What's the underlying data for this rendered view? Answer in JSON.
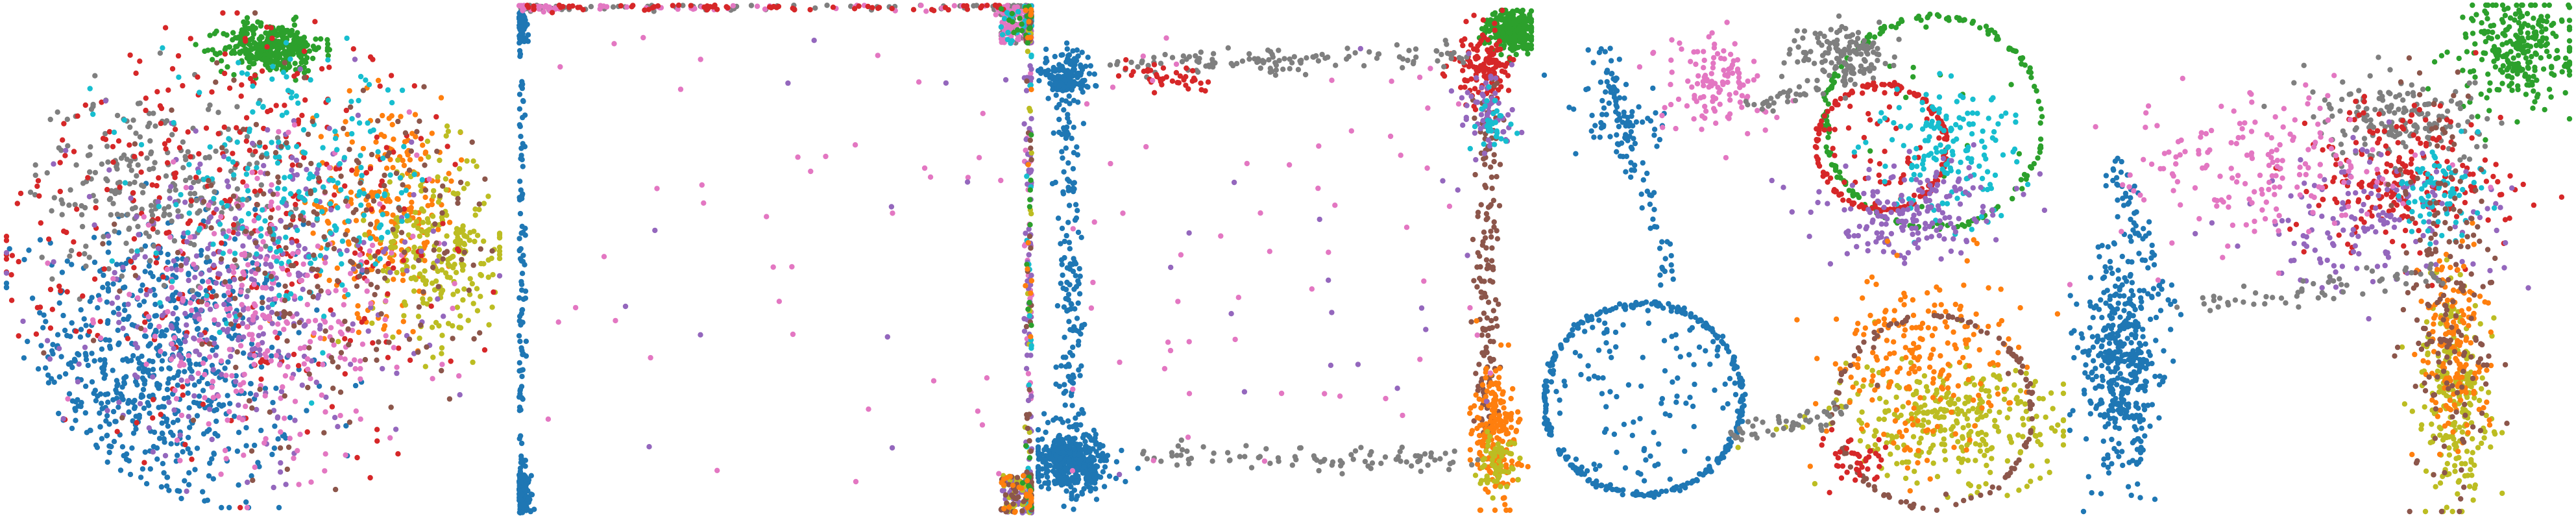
{
  "figure": {
    "palette": {
      "blue": "#1f77b4",
      "orange": "#ff7f0e",
      "green": "#2ca02c",
      "red": "#d62728",
      "purple": "#9467bd",
      "brown": "#8c564b",
      "pink": "#e377c2",
      "gray": "#7f7f7f",
      "olive": "#bcbd22",
      "cyan": "#17becf"
    }
  },
  "chart_data": [
    {
      "type": "scatter",
      "layout": "disk",
      "xlim": [
        -1,
        1
      ],
      "ylim": [
        -1,
        1
      ],
      "axes_visible": false,
      "grid": false,
      "legend": "none",
      "series": [
        {
          "color": "blue",
          "cluster": {
            "x": -0.4,
            "y": -0.45,
            "sx": 0.28,
            "sy": 0.3,
            "n": 750
          }
        },
        {
          "color": "green",
          "cluster": {
            "x": 0.08,
            "y": 0.86,
            "sx": 0.1,
            "sy": 0.05,
            "n": 340
          }
        },
        {
          "color": "orange",
          "cluster": {
            "x": 0.55,
            "y": 0.22,
            "sx": 0.15,
            "sy": 0.22,
            "n": 230
          }
        },
        {
          "color": "olive",
          "cluster": {
            "x": 0.76,
            "y": 0.04,
            "sx": 0.14,
            "sy": 0.2,
            "n": 260
          }
        },
        {
          "color": "gray",
          "cluster": {
            "x": -0.4,
            "y": 0.32,
            "sx": 0.26,
            "sy": 0.18,
            "n": 270
          }
        },
        {
          "color": "red",
          "cluster": {
            "x": -0.1,
            "y": 0.2,
            "sx": 0.55,
            "sy": 0.5,
            "n": 420
          }
        },
        {
          "color": "purple",
          "cluster": {
            "x": -0.05,
            "y": -0.12,
            "sx": 0.35,
            "sy": 0.32,
            "n": 350
          }
        },
        {
          "color": "pink",
          "cluster": {
            "x": 0.05,
            "y": -0.25,
            "sx": 0.32,
            "sy": 0.3,
            "n": 300
          }
        },
        {
          "color": "cyan",
          "cluster": {
            "x": 0.18,
            "y": 0.28,
            "sx": 0.28,
            "sy": 0.25,
            "n": 230
          }
        },
        {
          "color": "brown",
          "cluster": {
            "x": 0.32,
            "y": 0.0,
            "sx": 0.35,
            "sy": 0.4,
            "n": 250
          }
        }
      ]
    },
    {
      "type": "scatter",
      "layout": "square-boundary",
      "xlim": [
        -1,
        1
      ],
      "ylim": [
        -1,
        1
      ],
      "axes_visible": false,
      "grid": false,
      "legend": "none",
      "series": [
        {
          "color": "blue",
          "boundary": {
            "edges": [
              "left"
            ],
            "cornerBias": "bottom-left",
            "n": 340
          }
        },
        {
          "color": "gray",
          "boundary": {
            "edges": [
              "top"
            ],
            "cornerBias": "top-right",
            "n": 160
          }
        },
        {
          "color": "pink",
          "boundary": {
            "edges": [
              "right",
              "top"
            ],
            "cornerBias": "top-right",
            "n": 220
          }
        },
        {
          "color": "red",
          "boundary": {
            "edges": [
              "top"
            ],
            "cornerBias": "none",
            "n": 70
          }
        },
        {
          "color": "purple",
          "boundary": {
            "edges": [
              "right"
            ],
            "cornerBias": "bottom-right",
            "n": 180
          }
        },
        {
          "color": "olive",
          "boundary": {
            "edges": [
              "right"
            ],
            "cornerBias": "bottom-right",
            "n": 60
          }
        },
        {
          "color": "cyan",
          "boundary": {
            "edges": [
              "right"
            ],
            "cornerBias": "top-right",
            "n": 60
          }
        },
        {
          "color": "brown",
          "boundary": {
            "edges": [
              "right"
            ],
            "cornerBias": "bottom-right",
            "n": 80
          }
        },
        {
          "color": "green",
          "boundary": {
            "edges": [
              "right"
            ],
            "cornerBias": "top-right",
            "n": 40
          }
        },
        {
          "color": "orange",
          "boundary": {
            "edges": [
              "right"
            ],
            "cornerBias": "bottom-right",
            "n": 40
          }
        },
        {
          "color": "pink",
          "interior": {
            "n": 40
          }
        },
        {
          "color": "purple",
          "interior": {
            "n": 12
          }
        }
      ]
    },
    {
      "type": "scatter",
      "layout": "corner-clusters",
      "xlim": [
        -1,
        1
      ],
      "ylim": [
        -1,
        1
      ],
      "axes_visible": false,
      "grid": false,
      "legend": "none",
      "series": [
        {
          "color": "blue",
          "cluster": {
            "x": -0.86,
            "y": -0.8,
            "sx": 0.07,
            "sy": 0.06,
            "n": 420
          }
        },
        {
          "color": "blue",
          "cluster": {
            "x": -0.88,
            "y": 0.74,
            "sx": 0.05,
            "sy": 0.05,
            "n": 160
          }
        },
        {
          "color": "blue",
          "line": {
            "x0": -0.88,
            "y0": 0.6,
            "x1": -0.86,
            "y1": -0.7,
            "n": 150
          }
        },
        {
          "color": "green",
          "cluster": {
            "x": 0.92,
            "y": 0.92,
            "sx": 0.05,
            "sy": 0.04,
            "n": 300
          }
        },
        {
          "color": "red",
          "cluster": {
            "x": 0.8,
            "y": 0.78,
            "sx": 0.06,
            "sy": 0.08,
            "n": 120
          }
        },
        {
          "color": "gray",
          "line": {
            "x0": -0.7,
            "y0": 0.78,
            "x1": 0.8,
            "y1": 0.82,
            "n": 120
          }
        },
        {
          "color": "red",
          "line": {
            "x0": -0.65,
            "y0": 0.76,
            "x1": -0.3,
            "y1": 0.7,
            "n": 40
          }
        },
        {
          "color": "brown",
          "line": {
            "x0": 0.82,
            "y0": 0.7,
            "x1": 0.82,
            "y1": -0.7,
            "n": 160
          }
        },
        {
          "color": "orange",
          "cluster": {
            "x": 0.86,
            "y": -0.7,
            "sx": 0.05,
            "sy": 0.14,
            "n": 200
          }
        },
        {
          "color": "olive",
          "cluster": {
            "x": 0.86,
            "y": -0.82,
            "sx": 0.04,
            "sy": 0.06,
            "n": 60
          }
        },
        {
          "color": "purple",
          "cluster": {
            "x": 0.82,
            "y": 0.6,
            "sx": 0.05,
            "sy": 0.08,
            "n": 60
          }
        },
        {
          "color": "gray",
          "line": {
            "x0": -0.6,
            "y0": -0.78,
            "x1": 0.78,
            "y1": -0.8,
            "n": 90
          }
        },
        {
          "color": "pink",
          "interior": {
            "n": 60
          }
        },
        {
          "color": "purple",
          "interior": {
            "n": 20
          }
        },
        {
          "color": "cyan",
          "cluster": {
            "x": 0.84,
            "y": 0.55,
            "sx": 0.04,
            "sy": 0.05,
            "n": 30
          }
        }
      ]
    },
    {
      "type": "scatter",
      "layout": "circles-bridge",
      "xlim": [
        -1,
        1
      ],
      "ylim": [
        -1,
        1
      ],
      "axes_visible": false,
      "grid": false,
      "legend": "none",
      "series": [
        {
          "color": "blue",
          "ring": {
            "cx": -0.62,
            "cy": -0.55,
            "r": 0.38,
            "n": 420,
            "fill": 0.25
          }
        },
        {
          "color": "blue",
          "cluster": {
            "x": -0.72,
            "y": 0.55,
            "sx": 0.12,
            "sy": 0.08,
            "n": 60
          }
        },
        {
          "color": "blue",
          "line": {
            "x0": -0.78,
            "y0": 0.85,
            "x1": -0.5,
            "y1": -0.1,
            "n": 80
          }
        },
        {
          "color": "pink",
          "cluster": {
            "x": -0.35,
            "y": 0.7,
            "sx": 0.1,
            "sy": 0.1,
            "n": 120
          }
        },
        {
          "color": "green",
          "ring": {
            "cx": 0.5,
            "cy": 0.55,
            "r": 0.42,
            "n": 200,
            "fill": 0.1
          }
        },
        {
          "color": "red",
          "ring": {
            "cx": 0.3,
            "cy": 0.45,
            "r": 0.25,
            "n": 220,
            "fill": 0.3
          }
        },
        {
          "color": "gray",
          "cluster": {
            "x": 0.15,
            "y": 0.82,
            "sx": 0.08,
            "sy": 0.06,
            "n": 140
          }
        },
        {
          "color": "cyan",
          "cluster": {
            "x": 0.55,
            "y": 0.42,
            "sx": 0.14,
            "sy": 0.14,
            "n": 160
          }
        },
        {
          "color": "purple",
          "cluster": {
            "x": 0.4,
            "y": 0.18,
            "sx": 0.18,
            "sy": 0.1,
            "n": 180
          }
        },
        {
          "color": "olive",
          "cluster": {
            "x": 0.55,
            "y": -0.65,
            "sx": 0.22,
            "sy": 0.12,
            "n": 320
          }
        },
        {
          "color": "orange",
          "cluster": {
            "x": 0.45,
            "y": -0.4,
            "sx": 0.18,
            "sy": 0.18,
            "n": 220
          }
        },
        {
          "color": "brown",
          "ring": {
            "cx": 0.5,
            "cy": -0.6,
            "r": 0.38,
            "n": 120,
            "fill": 0.05
          }
        },
        {
          "color": "red",
          "cluster": {
            "x": 0.2,
            "y": -0.8,
            "sx": 0.06,
            "sy": 0.06,
            "n": 40
          }
        },
        {
          "color": "gray",
          "line": {
            "x0": -0.3,
            "y0": -0.7,
            "x1": 0.15,
            "y1": -0.6,
            "n": 50
          }
        },
        {
          "color": "gray",
          "line": {
            "x0": -0.2,
            "y0": 0.6,
            "x1": 0.1,
            "y1": 0.7,
            "n": 30
          }
        }
      ]
    },
    {
      "type": "scatter",
      "layout": "wing",
      "xlim": [
        -1,
        1
      ],
      "ylim": [
        -1,
        1
      ],
      "axes_visible": false,
      "grid": false,
      "legend": "none",
      "series": [
        {
          "color": "green",
          "cluster": {
            "x": 0.78,
            "y": 0.82,
            "sx": 0.12,
            "sy": 0.12,
            "n": 260
          }
        },
        {
          "color": "gray",
          "cluster": {
            "x": 0.3,
            "y": 0.55,
            "sx": 0.18,
            "sy": 0.08,
            "n": 180
          }
        },
        {
          "color": "blue",
          "cluster": {
            "x": -0.8,
            "y": -0.42,
            "sx": 0.08,
            "sy": 0.22,
            "n": 420
          }
        },
        {
          "color": "blue",
          "line": {
            "x0": -0.85,
            "y0": 0.4,
            "x1": -0.6,
            "y1": -0.2,
            "n": 60
          }
        },
        {
          "color": "red",
          "cluster": {
            "x": 0.35,
            "y": 0.3,
            "sx": 0.2,
            "sy": 0.15,
            "n": 220
          }
        },
        {
          "color": "purple",
          "cluster": {
            "x": 0.2,
            "y": 0.15,
            "sx": 0.25,
            "sy": 0.15,
            "n": 160
          }
        },
        {
          "color": "pink",
          "cluster": {
            "x": -0.2,
            "y": 0.35,
            "sx": 0.28,
            "sy": 0.15,
            "n": 180
          }
        },
        {
          "color": "cyan",
          "cluster": {
            "x": 0.48,
            "y": 0.25,
            "sx": 0.08,
            "sy": 0.1,
            "n": 80
          }
        },
        {
          "color": "olive",
          "cluster": {
            "x": 0.55,
            "y": -0.55,
            "sx": 0.07,
            "sy": 0.22,
            "n": 240
          }
        },
        {
          "color": "orange",
          "cluster": {
            "x": 0.55,
            "y": -0.35,
            "sx": 0.06,
            "sy": 0.2,
            "n": 160
          }
        },
        {
          "color": "brown",
          "cluster": {
            "x": 0.5,
            "y": -0.15,
            "sx": 0.1,
            "sy": 0.4,
            "n": 180
          }
        },
        {
          "color": "gray",
          "line": {
            "x0": -0.55,
            "y0": -0.2,
            "x1": 0.5,
            "y1": -0.05,
            "n": 60
          }
        }
      ]
    }
  ]
}
